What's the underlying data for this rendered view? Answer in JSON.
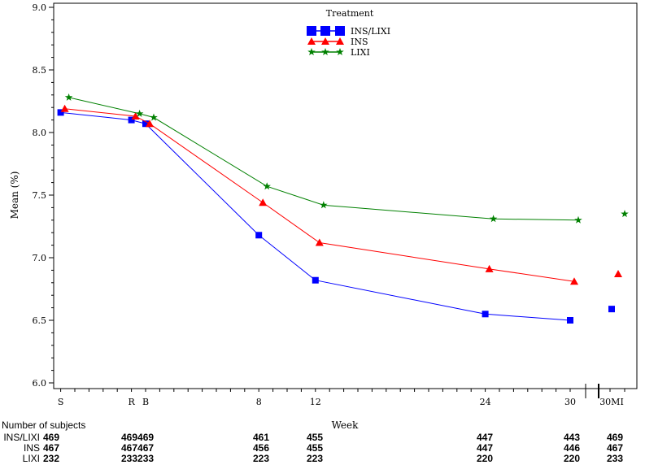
{
  "chart_data": {
    "type": "line",
    "title": "",
    "xlabel": "Week",
    "ylabel": "Mean (%)",
    "ylim": [
      6.0,
      9.0
    ],
    "yticks": [
      "6.0",
      "6.5",
      "7.0",
      "7.5",
      "8.0",
      "8.5",
      "9.0"
    ],
    "x_tick_labels": [
      "S",
      "R",
      "B",
      "8",
      "12",
      "24",
      "30",
      "30MI"
    ],
    "x_weeks": [
      -6,
      -1,
      0,
      8,
      12,
      24,
      30,
      33.5
    ],
    "connected_points": 7,
    "grid": false,
    "legend": {
      "title": "Treatment",
      "placement": "top-center"
    },
    "series": [
      {
        "name": "INS/LIXI",
        "color": "#0000ff",
        "marker": "square",
        "values": [
          8.16,
          8.1,
          8.07,
          7.18,
          6.82,
          6.55,
          6.5,
          6.59
        ]
      },
      {
        "name": "INS",
        "color": "#ff0000",
        "marker": "triangle",
        "values": [
          8.19,
          8.13,
          8.07,
          7.44,
          7.12,
          6.91,
          6.81,
          6.87
        ]
      },
      {
        "name": "LIXI",
        "color": "#008000",
        "marker": "star",
        "values": [
          8.28,
          8.15,
          8.12,
          7.57,
          7.42,
          7.31,
          7.3,
          7.35
        ]
      }
    ]
  },
  "subjects": {
    "title": "Number of subjects",
    "rows": [
      {
        "label": "INS/LIXI",
        "counts": [
          "469",
          "469469",
          "461",
          "455",
          "447",
          "443",
          "469"
        ]
      },
      {
        "label": "INS",
        "counts": [
          "467",
          "467467",
          "456",
          "455",
          "447",
          "446",
          "467"
        ]
      },
      {
        "label": "LIXI",
        "counts": [
          "232",
          "233233",
          "223",
          "223",
          "220",
          "220",
          "233"
        ]
      }
    ]
  }
}
